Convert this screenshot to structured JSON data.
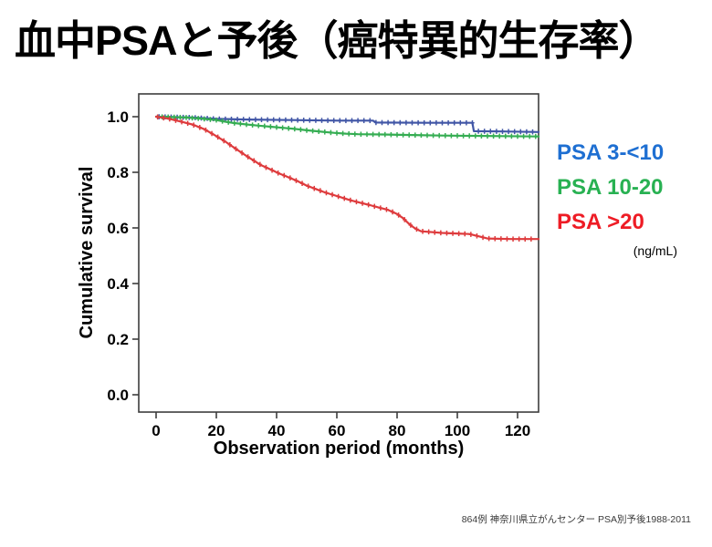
{
  "slide": {
    "title": "血中PSAと予後（癌特異的生存率）",
    "footnote": "864例  神奈川県立がんセンター  PSA別予後1988-2011"
  },
  "legend": {
    "entries": [
      {
        "label": "PSA 3-<10",
        "color": "#1e6fd2"
      },
      {
        "label": "PSA 10-20",
        "color": "#28b152"
      },
      {
        "label": "PSA >20",
        "color": "#ee1c25"
      }
    ],
    "unit": "(ng/mL)"
  },
  "chart_data": {
    "type": "line",
    "subtype": "kaplan-meier",
    "title": "",
    "xlabel": "Observation period (months)",
    "ylabel": "Cumulative survival",
    "xlim": [
      -6,
      127
    ],
    "ylim": [
      -0.08,
      1.08
    ],
    "x_ticks": [
      0,
      20,
      40,
      60,
      80,
      100,
      120
    ],
    "y_ticks": [
      "1.0",
      "0.8",
      "0.6",
      "0.4",
      "0.2",
      "0.0"
    ],
    "y_tick_values": [
      1.0,
      0.8,
      0.6,
      0.4,
      0.2,
      0.0
    ],
    "grid": false,
    "legend_position": "right-of-plot",
    "frame_color": "#3d3d3d",
    "series": [
      {
        "name": "PSA 3-<10",
        "color": "#4156a6",
        "censor": {
          "start": 1,
          "end": 126,
          "step": 2
        },
        "points": [
          [
            0,
            1.0
          ],
          [
            12,
            0.997
          ],
          [
            20,
            0.992
          ],
          [
            30,
            0.99
          ],
          [
            45,
            0.988
          ],
          [
            60,
            0.986
          ],
          [
            72,
            0.986
          ],
          [
            73,
            0.979
          ],
          [
            90,
            0.978
          ],
          [
            105,
            0.978
          ],
          [
            105.5,
            0.948
          ],
          [
            115,
            0.947
          ],
          [
            127,
            0.945
          ]
        ]
      },
      {
        "name": "PSA 10-20",
        "color": "#35ad52",
        "censor": {
          "start": 2,
          "end": 126,
          "step": 2
        },
        "points": [
          [
            0,
            1.0
          ],
          [
            10,
            0.997
          ],
          [
            15,
            0.993
          ],
          [
            20,
            0.988
          ],
          [
            23,
            0.982
          ],
          [
            26,
            0.977
          ],
          [
            30,
            0.972
          ],
          [
            34,
            0.968
          ],
          [
            38,
            0.964
          ],
          [
            42,
            0.96
          ],
          [
            46,
            0.956
          ],
          [
            50,
            0.951
          ],
          [
            55,
            0.946
          ],
          [
            59,
            0.942
          ],
          [
            63,
            0.939
          ],
          [
            67,
            0.937
          ],
          [
            75,
            0.936
          ],
          [
            85,
            0.934
          ],
          [
            95,
            0.932
          ],
          [
            105,
            0.931
          ],
          [
            115,
            0.93
          ],
          [
            127,
            0.929
          ]
        ]
      },
      {
        "name": "PSA >20",
        "color": "#de3b3d",
        "censor": {
          "start": 0.5,
          "end": 126,
          "step": 2
        },
        "points": [
          [
            0,
            1.0
          ],
          [
            4,
            0.993
          ],
          [
            8,
            0.983
          ],
          [
            12,
            0.972
          ],
          [
            16,
            0.955
          ],
          [
            20,
            0.93
          ],
          [
            23,
            0.91
          ],
          [
            26,
            0.888
          ],
          [
            29,
            0.866
          ],
          [
            32,
            0.845
          ],
          [
            35,
            0.825
          ],
          [
            38,
            0.81
          ],
          [
            41,
            0.795
          ],
          [
            44,
            0.782
          ],
          [
            47,
            0.768
          ],
          [
            50,
            0.752
          ],
          [
            53,
            0.74
          ],
          [
            56,
            0.728
          ],
          [
            59,
            0.718
          ],
          [
            62,
            0.708
          ],
          [
            65,
            0.698
          ],
          [
            68,
            0.69
          ],
          [
            71,
            0.682
          ],
          [
            74,
            0.673
          ],
          [
            77,
            0.665
          ],
          [
            80,
            0.65
          ],
          [
            82,
            0.635
          ],
          [
            84,
            0.614
          ],
          [
            86,
            0.598
          ],
          [
            88,
            0.588
          ],
          [
            95,
            0.582
          ],
          [
            104,
            0.578
          ],
          [
            110,
            0.562
          ],
          [
            118,
            0.56
          ],
          [
            127,
            0.56
          ]
        ]
      }
    ]
  }
}
